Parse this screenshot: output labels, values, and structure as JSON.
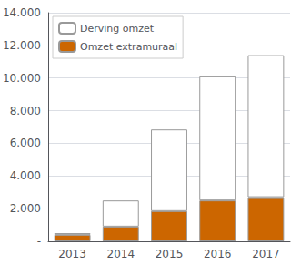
{
  "chart_data": {
    "type": "bar",
    "stacked": true,
    "categories": [
      "2013",
      "2014",
      "2015",
      "2016",
      "2017"
    ],
    "series": [
      {
        "name": "Omzet extramuraal",
        "color": "#CC6600",
        "values": [
          400,
          900,
          1850,
          2500,
          2700
        ]
      },
      {
        "name": "Derving omzet",
        "color": "#FFFFFF",
        "values": [
          100,
          1600,
          5000,
          7600,
          8700
        ]
      }
    ],
    "ylim": [
      0,
      14000
    ],
    "yticks": [
      {
        "value": 0,
        "label": "-"
      },
      {
        "value": 2000,
        "label": "2.000"
      },
      {
        "value": 4000,
        "label": "4.000"
      },
      {
        "value": 6000,
        "label": "6.000"
      },
      {
        "value": 8000,
        "label": "8.000"
      },
      {
        "value": 10000,
        "label": "10.000"
      },
      {
        "value": 12000,
        "label": "12.000"
      },
      {
        "value": 14000,
        "label": "14.000"
      }
    ],
    "grid": true,
    "legend": "upper left"
  }
}
